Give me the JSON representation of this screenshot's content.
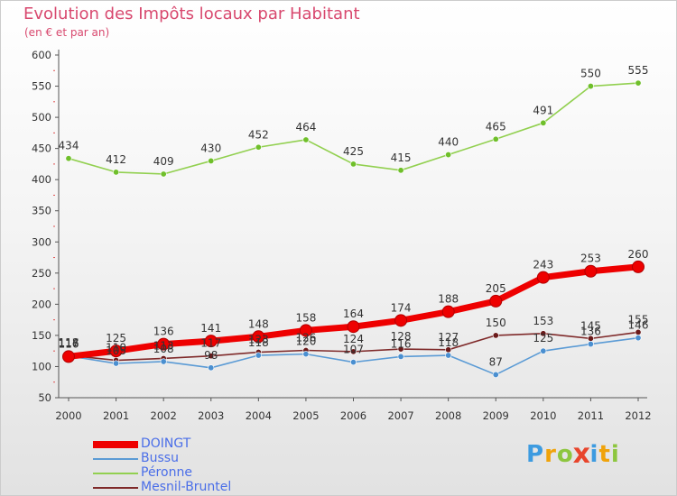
{
  "header": {
    "title": "Evolution des Impôts locaux par Habitant",
    "subtitle": "(en € et par an)"
  },
  "brand": {
    "letters": [
      "P",
      "r",
      "o",
      "x",
      "i",
      "t",
      "i"
    ],
    "colors": [
      "#3d9be0",
      "#f0a30a",
      "#8dc63f",
      "#e8452c",
      "#3d9be0",
      "#f0a30a",
      "#8dc63f"
    ]
  },
  "chart_data": {
    "type": "line",
    "title": "Evolution des Impôts locaux par Habitant",
    "subtitle": "(en € et par an)",
    "xlabel": "",
    "ylabel": "",
    "x": [
      2000,
      2001,
      2002,
      2003,
      2004,
      2005,
      2006,
      2007,
      2008,
      2009,
      2010,
      2011,
      2012
    ],
    "ylim": [
      50,
      600
    ],
    "yticks": [
      50,
      100,
      150,
      200,
      250,
      300,
      350,
      400,
      450,
      500,
      550,
      600
    ],
    "grid": false,
    "legend_position": "bottom-left",
    "series": [
      {
        "name": "DOINGT",
        "color": "#ee0000",
        "values": [
          116,
          125,
          136,
          141,
          148,
          158,
          164,
          174,
          188,
          205,
          243,
          253,
          260
        ],
        "labels": true
      },
      {
        "name": "Bussu",
        "color": "#5b9bd5",
        "values": [
          117,
          105,
          108,
          98,
          118,
          120,
          107,
          116,
          118,
          87,
          125,
          136,
          146
        ],
        "labels": true
      },
      {
        "name": "Péronne",
        "color": "#92d050",
        "values": [
          434,
          412,
          409,
          430,
          452,
          464,
          425,
          415,
          440,
          465,
          491,
          550,
          555
        ],
        "labels": true
      },
      {
        "name": "Mesnil-Bruntel",
        "color": "#7f2a2a",
        "values": [
          118,
          110,
          113,
          117,
          123,
          126,
          124,
          128,
          127,
          150,
          153,
          145,
          155
        ],
        "labels": true
      }
    ],
    "label_display": {
      "0": [
        "116",
        "125",
        "136",
        "141",
        "148",
        "158",
        "164",
        "174",
        "188",
        "205",
        "243",
        "253",
        "260"
      ],
      "1": [
        "117",
        "105",
        "108",
        "98",
        "118",
        "120",
        "107",
        "116",
        "118",
        "87",
        "125",
        "136",
        "146"
      ],
      "2": [
        "434",
        "412",
        "409",
        "430",
        "452",
        "464",
        "425",
        "415",
        "440",
        "465",
        "491",
        "550",
        "555"
      ],
      "3": [
        "118",
        "110",
        "113",
        "117",
        "123",
        "126",
        "124",
        "128",
        "127",
        "150",
        "153",
        "145",
        "155"
      ]
    }
  }
}
